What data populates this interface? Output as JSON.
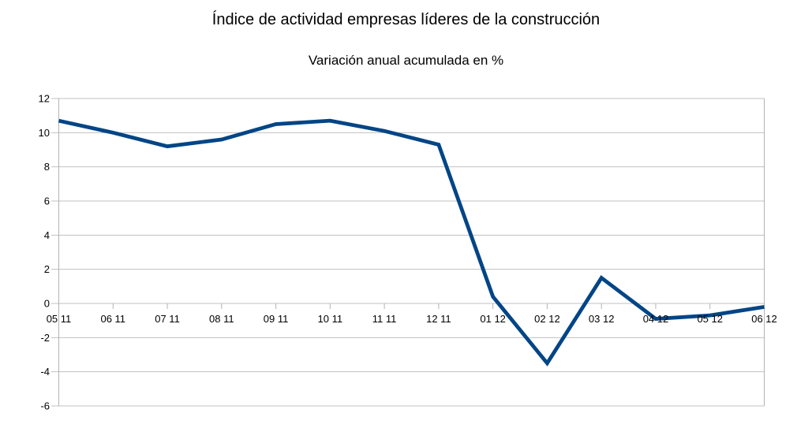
{
  "chart_data": {
    "type": "line",
    "title": "Índice de actividad empresas líderes de la construcción",
    "subtitle": "Variación anual acumulada en %",
    "categories": [
      "05 11",
      "06 11",
      "07 11",
      "08 11",
      "09 11",
      "10 11",
      "11 11",
      "12 11",
      "01 12",
      "02 12",
      "03 12",
      "04 12",
      "05 12",
      "06 12"
    ],
    "values": [
      10.7,
      10.0,
      9.2,
      9.6,
      10.5,
      10.7,
      10.1,
      9.3,
      0.4,
      -3.5,
      1.5,
      -0.9,
      -0.7,
      -0.2
    ],
    "xlabel": "",
    "ylabel": "",
    "ylim": [
      -6,
      12
    ],
    "ytick_step": 2,
    "ytick_labels": [
      "-6",
      "-4",
      "-2",
      "0",
      "2",
      "4",
      "6",
      "8",
      "10",
      "12"
    ],
    "grid": true,
    "legend": "none",
    "axis_crosses_at": 0,
    "colors": {
      "line": "#004586",
      "grid": "#c0c0c0",
      "axis": "#b3b3b3",
      "text": "#000000",
      "background": "#ffffff"
    }
  }
}
